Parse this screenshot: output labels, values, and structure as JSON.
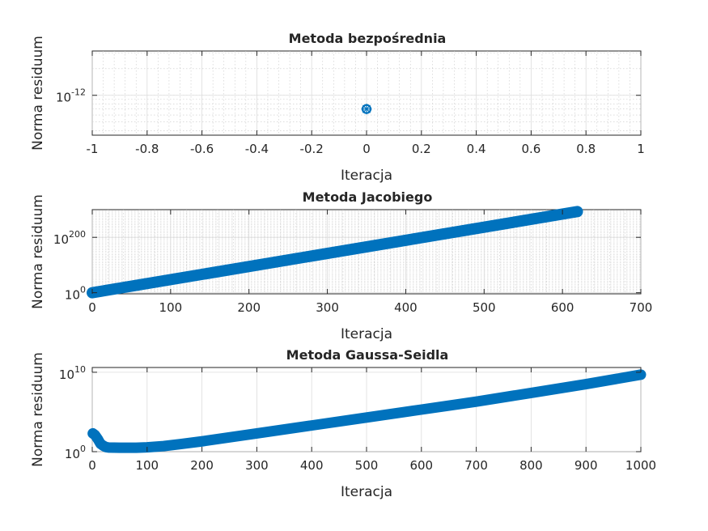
{
  "chart_data": [
    {
      "type": "scatter",
      "title": "Metoda bezpośrednia",
      "xlabel": "Iteracja",
      "ylabel": "Norma residuum",
      "xlim": [
        -1,
        1
      ],
      "yscale": "log",
      "ylim_log10": [
        -12.45,
        -11.5
      ],
      "x_ticks": [
        -1,
        -0.8,
        -0.6,
        -0.4,
        -0.2,
        0,
        0.2,
        0.4,
        0.6,
        0.8,
        1
      ],
      "x_tick_labels": [
        "-1",
        "-0.8",
        "-0.6",
        "-0.4",
        "-0.2",
        "0",
        "0.2",
        "0.4",
        "0.6",
        "0.8",
        "1"
      ],
      "y_ticks_log10": [
        -12
      ],
      "y_tick_labels": [
        {
          "base": "10",
          "exp": "-12"
        }
      ],
      "minor_grid": true,
      "marker": "o",
      "color": "#0072BD",
      "points": [
        {
          "x": 0,
          "y": 7e-13
        }
      ]
    },
    {
      "type": "scatter",
      "title": "Metoda Jacobiego",
      "xlabel": "Iteracja",
      "ylabel": "Norma residuum",
      "xlim": [
        0,
        700
      ],
      "yscale": "log",
      "ylim_log10": [
        -4,
        300
      ],
      "x_ticks": [
        0,
        100,
        200,
        300,
        400,
        500,
        600,
        700
      ],
      "x_tick_labels": [
        "0",
        "100",
        "200",
        "300",
        "400",
        "500",
        "600",
        "700"
      ],
      "y_ticks_log10": [
        0,
        200
      ],
      "y_tick_labels": [
        {
          "base": "10",
          "exp": "0"
        },
        {
          "base": "10",
          "exp": "200"
        }
      ],
      "minor_grid": true,
      "marker": "*",
      "color": "#0072BD",
      "segments": [
        {
          "x0": 0,
          "log10y0": 0,
          "x1": 619,
          "log10y1": 293
        }
      ]
    },
    {
      "type": "scatter",
      "title": "Metoda Gaussa-Seidla",
      "xlabel": "Iteracja",
      "ylabel": "Norma residuum",
      "xlim": [
        0,
        1000
      ],
      "yscale": "log",
      "ylim_log10": [
        0,
        10.6
      ],
      "x_ticks": [
        0,
        100,
        200,
        300,
        400,
        500,
        600,
        700,
        800,
        900,
        1000
      ],
      "x_tick_labels": [
        "0",
        "100",
        "200",
        "300",
        "400",
        "500",
        "600",
        "700",
        "800",
        "900",
        "1000"
      ],
      "y_ticks_log10": [
        0,
        10
      ],
      "y_tick_labels": [
        {
          "base": "10",
          "exp": "0"
        },
        {
          "base": "10",
          "exp": "10"
        }
      ],
      "minor_grid": false,
      "marker": "*",
      "color": "#0072BD",
      "curve": [
        [
          1,
          2.3
        ],
        [
          5,
          2.1
        ],
        [
          10,
          1.6
        ],
        [
          15,
          1.0
        ],
        [
          20,
          0.75
        ],
        [
          25,
          0.58
        ],
        [
          30,
          0.52
        ],
        [
          50,
          0.5
        ],
        [
          80,
          0.5
        ],
        [
          100,
          0.55
        ],
        [
          130,
          0.7
        ],
        [
          160,
          0.95
        ],
        [
          200,
          1.3
        ],
        [
          300,
          2.3
        ],
        [
          400,
          3.3
        ],
        [
          500,
          4.3
        ],
        [
          600,
          5.3
        ],
        [
          700,
          6.3
        ],
        [
          800,
          7.4
        ],
        [
          900,
          8.5
        ],
        [
          1000,
          9.7
        ]
      ]
    }
  ]
}
